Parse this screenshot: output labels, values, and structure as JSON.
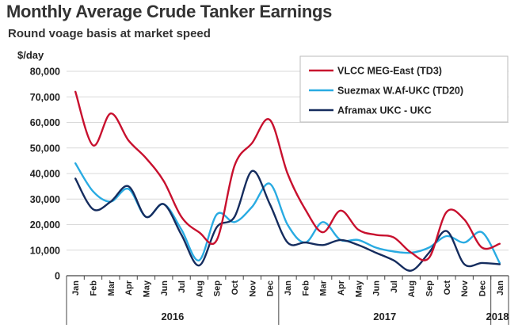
{
  "chart_data": {
    "type": "line",
    "title": "Monthly Average Crude Tanker Earnings",
    "subtitle": "Round voage basis at market speed",
    "ylabel": "$/day",
    "ylim": [
      0,
      80000
    ],
    "yticks": [
      "0",
      "10,000",
      "20,000",
      "30,000",
      "40,000",
      "50,000",
      "60,000",
      "70,000",
      "80,000"
    ],
    "categories": [
      "Jan",
      "Feb",
      "Mar",
      "Apr",
      "May",
      "Jun",
      "Jul",
      "Aug",
      "Sep",
      "Oct",
      "Nov",
      "Dec",
      "Jan",
      "Feb",
      "Mar",
      "Apr",
      "May",
      "Jun",
      "Jul",
      "Aug",
      "Sep",
      "Oct",
      "Nov",
      "Dec",
      "Jan"
    ],
    "years": [
      "2016",
      "2017",
      "2018"
    ],
    "grid": true,
    "legend_position": "top-right",
    "series": [
      {
        "name": "VLCC MEG-East (TD3)",
        "color": "#c8102e",
        "values": [
          72000,
          51000,
          63500,
          53000,
          46000,
          37000,
          23000,
          17000,
          14000,
          43000,
          52000,
          61000,
          40000,
          26000,
          17000,
          25500,
          18000,
          16000,
          15000,
          9000,
          7000,
          25000,
          22000,
          11000,
          12500
        ]
      },
      {
        "name": "Suezmax W.Af-UKC (TD20)",
        "color": "#29abe2",
        "values": [
          44000,
          33000,
          29000,
          34000,
          23000,
          28000,
          18000,
          6000,
          24000,
          21000,
          27000,
          36000,
          20000,
          13000,
          21000,
          14000,
          14000,
          11000,
          9500,
          9000,
          11000,
          15500,
          13000,
          17000,
          5000
        ]
      },
      {
        "name": "Aframax UKC - UKC",
        "color": "#152c5e",
        "values": [
          38000,
          26000,
          29000,
          35000,
          23000,
          28000,
          16000,
          4000,
          19000,
          23000,
          41000,
          28000,
          13000,
          13000,
          12000,
          14000,
          12000,
          9000,
          6000,
          2000,
          9000,
          17500,
          4500,
          5000,
          4500
        ]
      }
    ]
  }
}
